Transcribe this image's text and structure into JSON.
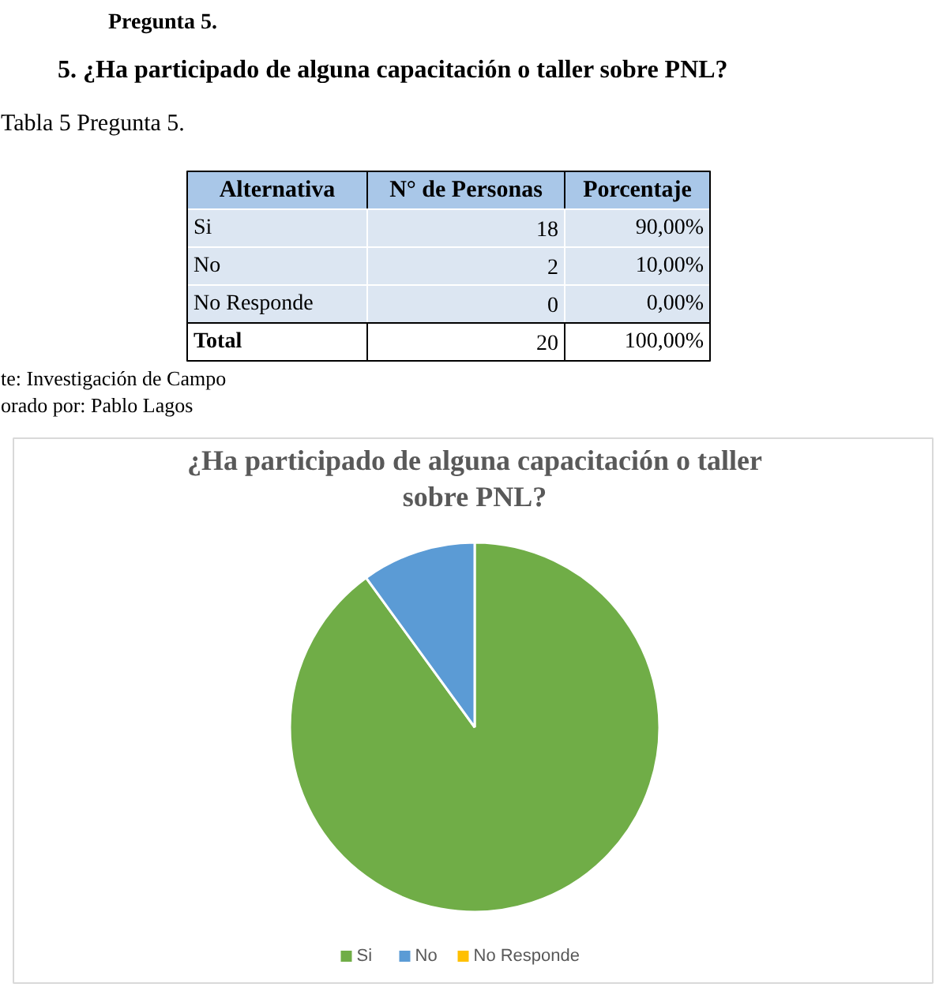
{
  "chart_data": {
    "type": "pie",
    "title": "¿Ha participado de alguna capacitación o taller\nsobre PNL?",
    "categories": [
      "Si",
      "No",
      "No Responde"
    ],
    "values": [
      90,
      10,
      0
    ],
    "colors": [
      "#70ad47",
      "#5b9bd5",
      "#ffc000"
    ],
    "legend": "bottom",
    "annotations": [
      "Pregunta 5.",
      "5.   ¿Ha participado de alguna capacitación o taller sobre PNL?",
      "Tabla 5 Pregunta 5.",
      "Alternativa",
      "N° de Personas",
      "Porcentaje",
      "Si",
      "18",
      "90,00%",
      "No",
      "2",
      "10,00%",
      "No Responde",
      "0",
      "0,00%",
      "Total",
      "20",
      "100,00%",
      "te: Investigación de Campo",
      "orado por: Pablo Lagos"
    ]
  }
}
